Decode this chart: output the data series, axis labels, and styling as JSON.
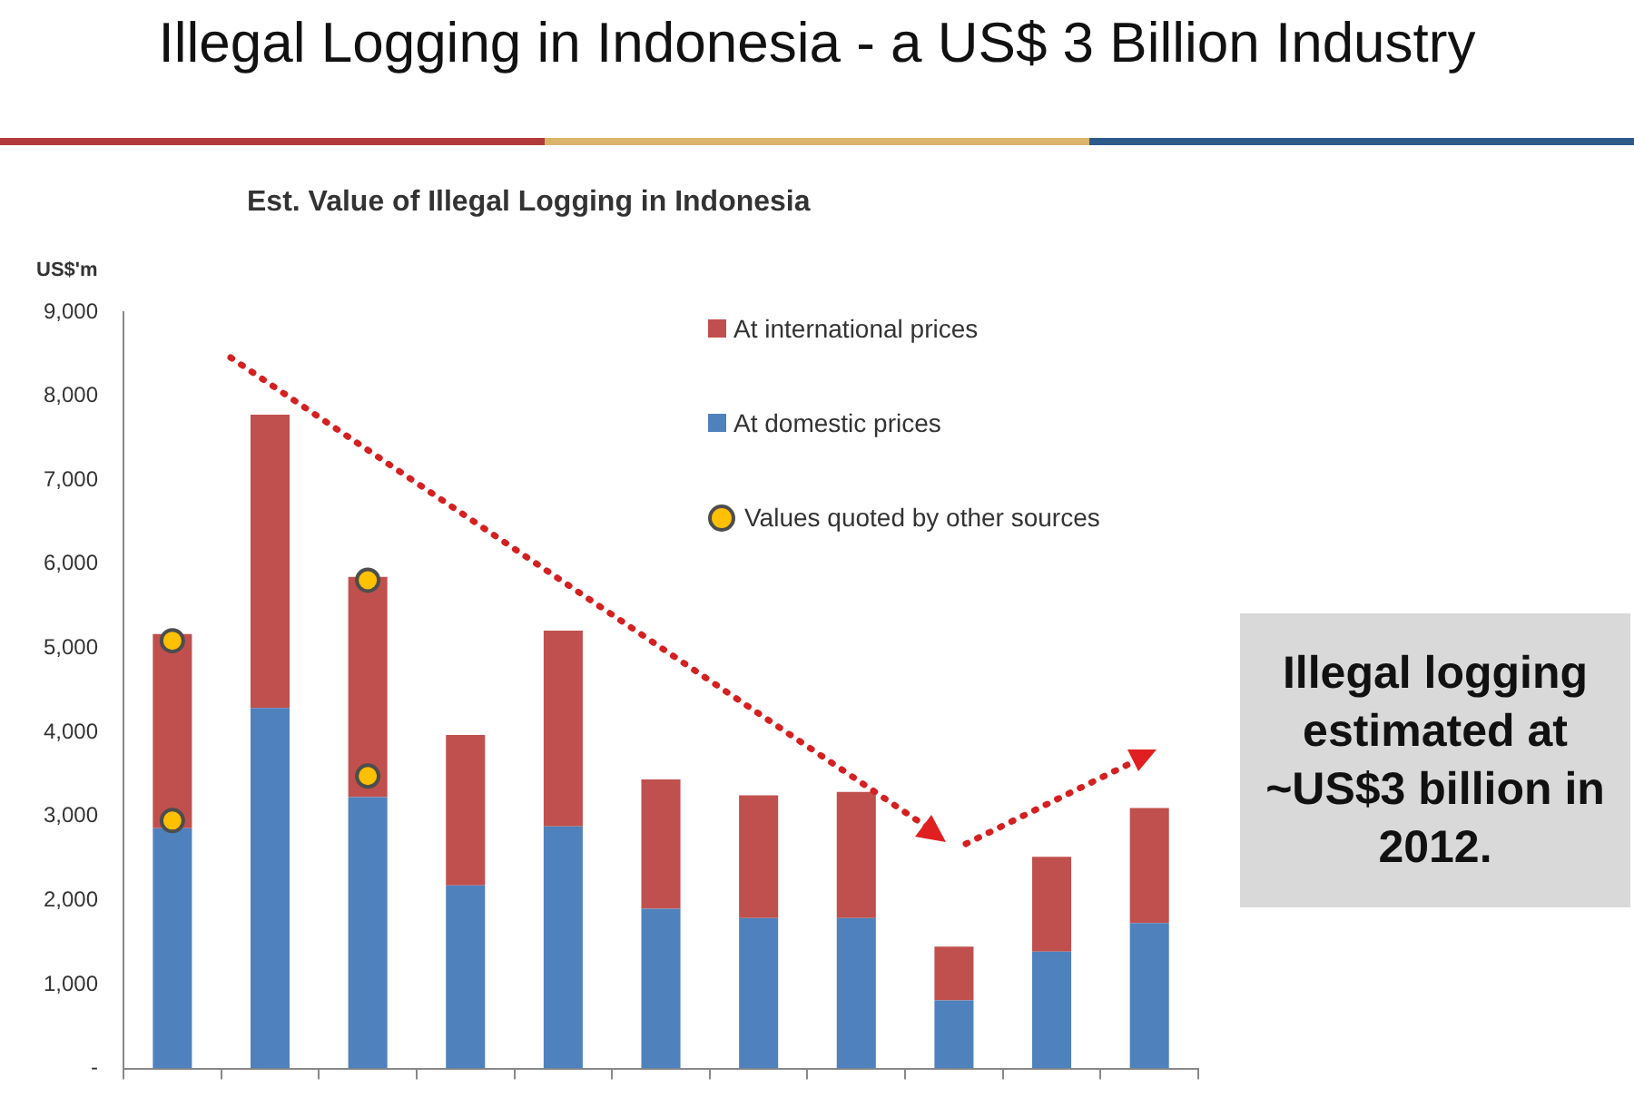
{
  "chart_data": {
    "type": "bar",
    "title": "Illegal Logging in Indonesia - a US$ 3 Billion Industry",
    "subtitle": "Est. Value of Illegal Logging in Indonesia",
    "ylabel": "US$'m",
    "categories": [
      null,
      null,
      null,
      null,
      null,
      null,
      null,
      null,
      null,
      null,
      null
    ],
    "stacked": true,
    "series": [
      {
        "name": "At domestic prices",
        "color": "#4f81bd",
        "values": [
          2860,
          4290,
          3230,
          2180,
          2880,
          1900,
          1790,
          1790,
          810,
          1390,
          1730
        ]
      },
      {
        "name": "At international prices",
        "color": "#c0504d",
        "values": [
          2310,
          3490,
          2620,
          1790,
          2330,
          1540,
          1460,
          1500,
          640,
          1130,
          1370
        ]
      },
      {
        "name": "Values quoted by other sources",
        "type": "scatter",
        "color": "#ffc000",
        "values": [
          5090,
          null,
          5810,
          null,
          null,
          null,
          null,
          null,
          null,
          null,
          null
        ]
      },
      {
        "type": "scatter",
        "color": "#ffc000",
        "values": [
          2950,
          null,
          3480,
          null,
          null,
          null,
          null,
          null,
          null,
          null,
          null
        ]
      }
    ],
    "ylim": [
      0,
      9000
    ],
    "yticks": [
      {
        "value": 0,
        "label": "-"
      },
      {
        "value": 1000,
        "label": "1,000"
      },
      {
        "value": 2000,
        "label": "2,000"
      },
      {
        "value": 3000,
        "label": "3,000"
      },
      {
        "value": 4000,
        "label": "4,000"
      },
      {
        "value": 5000,
        "label": "5,000"
      },
      {
        "value": 6000,
        "label": "6,000"
      },
      {
        "value": 7000,
        "label": "7,000"
      },
      {
        "value": 8000,
        "label": "8,000"
      },
      {
        "value": 9000,
        "label": "9,000"
      }
    ],
    "tick_labels": "y",
    "grid": false,
    "legend": "top right",
    "marker": "circle",
    "annotations": [
      "Illegal logging estimated at ~US$3 billion in 2012."
    ]
  }
}
